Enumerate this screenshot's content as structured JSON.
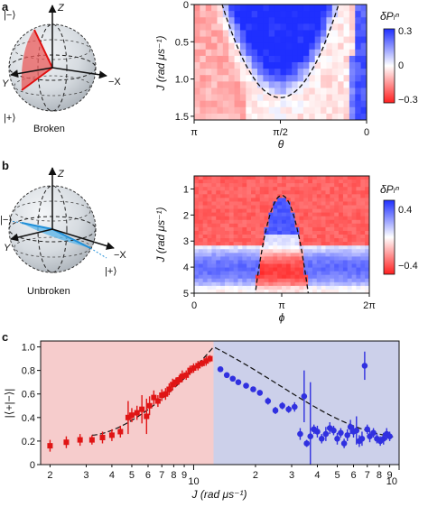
{
  "panels": {
    "a": {
      "letter": "a",
      "ylabel": "J (rad μs⁻¹)",
      "xlabel": "θ",
      "sphere": {
        "z_label": "Z",
        "minus_x_label": "−X",
        "y_label": "Y",
        "ket_minus": "|−⟩",
        "ket_plus": "|+⟩",
        "caption": "Broken"
      },
      "colorbar": {
        "label": "δPₗⁿ",
        "max_label": "0.3",
        "mid_label": "0",
        "min_label": "−0.3"
      }
    },
    "b": {
      "letter": "b",
      "ylabel": "J (rad μs⁻¹)",
      "xlabel": "ϕ",
      "sphere": {
        "z_label": "Z",
        "minus_x_label": "−X",
        "y_label": "Y",
        "ket_minus": "|−⟩",
        "ket_plus": "|+⟩",
        "caption": "Unbroken"
      },
      "colorbar": {
        "label": "δPₗⁿ",
        "max_label": "0.4",
        "min_label": "−0.4"
      }
    },
    "c": {
      "letter": "c",
      "ylabel": "|⟨+|−⟩|",
      "xlabel": "J (rad μs⁻¹)"
    }
  },
  "chart_data": [
    {
      "panel": "a",
      "type": "heatmap",
      "xlabel": "θ",
      "ylabel": "J (rad μs⁻¹)",
      "x_range": [
        3.1416,
        0
      ],
      "y_range": [
        0,
        1.55
      ],
      "x_ticks": [
        3.1416,
        1.5708,
        0
      ],
      "x_tick_labels": [
        "π",
        "π/2",
        "0"
      ],
      "y_ticks": [
        0,
        0.5,
        1.0,
        1.5
      ],
      "y_tick_labels": [
        "0",
        "0.5",
        "1.0",
        "1.5"
      ],
      "boundary": {
        "description": "dashed parabola",
        "vertex": [
          1.5708,
          1.25
        ],
        "passes_through": [
          [
            2.6,
            0
          ],
          [
            0.5,
            0
          ]
        ]
      },
      "color_range": [
        -0.3,
        0.3
      ],
      "colors": {
        "positive": "#1f2fff",
        "negative": "#ff1f1f"
      }
    },
    {
      "panel": "b",
      "type": "heatmap",
      "xlabel": "ϕ",
      "ylabel": "J (rad μs⁻¹)",
      "x_range": [
        0,
        6.2832
      ],
      "y_range": [
        0.5,
        5
      ],
      "x_ticks": [
        0,
        3.1416,
        6.2832
      ],
      "x_tick_labels": [
        "0",
        "π",
        "2π"
      ],
      "y_ticks": [
        1,
        2,
        3,
        4,
        5
      ],
      "y_tick_labels": [
        "1",
        "2",
        "3",
        "4",
        "5"
      ],
      "boundary": {
        "description": "dashed inverted parabola",
        "vertex": [
          3.1416,
          1.25
        ],
        "base": [
          [
            2.2,
            5
          ],
          [
            4.1,
            5
          ]
        ]
      },
      "color_range": [
        -0.4,
        0.4
      ]
    },
    {
      "panel": "c",
      "type": "scatter",
      "xlabel": "J (rad μs⁻¹)",
      "ylabel": "|⟨+|−⟩|",
      "x_scale": "log",
      "x_range": [
        1.8,
        100
      ],
      "ylim": [
        0,
        1.05
      ],
      "y_ticks": [
        0,
        0.2,
        0.4,
        0.6,
        0.8,
        1.0
      ],
      "y_tick_labels": [
        "0",
        "0.2",
        "0.4",
        "0.6",
        "0.8",
        "1.0"
      ],
      "x_tick_labels_major": [
        "10",
        "10"
      ],
      "x_tick_labels_minor": [
        "2",
        "3",
        "4",
        "5",
        "6",
        "7",
        "8",
        "9",
        "2",
        "3",
        "4",
        "5",
        "6",
        "7",
        "8",
        "9"
      ],
      "threshold_x": 12.5,
      "series": [
        {
          "marker": "square",
          "color": "#e01515",
          "x": [
            2.0,
            2.4,
            2.8,
            3.2,
            3.6,
            4.0,
            4.4,
            4.8,
            5.0,
            5.3,
            5.6,
            5.9,
            6.1,
            6.4,
            6.7,
            7.0,
            7.3,
            7.6,
            7.9,
            8.2,
            8.5,
            8.8,
            9.2,
            9.6,
            10.0,
            10.5,
            11.0,
            11.5,
            12.0
          ],
          "y": [
            0.16,
            0.19,
            0.21,
            0.21,
            0.23,
            0.25,
            0.28,
            0.4,
            0.42,
            0.44,
            0.47,
            0.41,
            0.5,
            0.57,
            0.54,
            0.59,
            0.6,
            0.64,
            0.68,
            0.7,
            0.72,
            0.75,
            0.76,
            0.8,
            0.82,
            0.84,
            0.86,
            0.88,
            0.9
          ],
          "err": [
            0.05,
            0.05,
            0.05,
            0.04,
            0.05,
            0.05,
            0.05,
            0.14,
            0.06,
            0.06,
            0.12,
            0.15,
            0.08,
            0.06,
            0.05,
            0.05,
            0.05,
            0.05,
            0.05,
            0.04,
            0.04,
            0.05,
            0.04,
            0.04,
            0.04,
            0.04,
            0.03,
            0.04,
            0.03
          ]
        },
        {
          "marker": "circle",
          "color": "#3030e0",
          "x": [
            13.5,
            14.5,
            15.5,
            16.5,
            18,
            19.5,
            21,
            23,
            25,
            27,
            29,
            31,
            33,
            34.5,
            35.5,
            37,
            38.5,
            40,
            42,
            44,
            46,
            48,
            50,
            52,
            54,
            56,
            58,
            60,
            62,
            64,
            66,
            68,
            70,
            72,
            75,
            78,
            81,
            84,
            87,
            90
          ],
          "y": [
            0.81,
            0.76,
            0.73,
            0.7,
            0.67,
            0.64,
            0.61,
            0.54,
            0.46,
            0.5,
            0.47,
            0.49,
            0.26,
            0.58,
            0.18,
            0.24,
            0.3,
            0.28,
            0.22,
            0.26,
            0.31,
            0.29,
            0.22,
            0.27,
            0.18,
            0.25,
            0.32,
            0.28,
            0.29,
            0.2,
            0.22,
            0.84,
            0.3,
            0.24,
            0.27,
            0.22,
            0.2,
            0.22,
            0.26,
            0.24
          ],
          "err": [
            0.02,
            0.02,
            0.02,
            0.02,
            0.02,
            0.02,
            0.02,
            0.03,
            0.03,
            0.03,
            0.03,
            0.04,
            0.05,
            0.22,
            0.03,
            0.46,
            0.04,
            0.05,
            0.04,
            0.06,
            0.05,
            0.04,
            0.05,
            0.04,
            0.04,
            0.05,
            0.06,
            0.05,
            0.12,
            0.05,
            0.06,
            0.12,
            0.04,
            0.05,
            0.04,
            0.04,
            0.04,
            0.05,
            0.05,
            0.04
          ]
        }
      ],
      "theory": {
        "description": "dashed curve: slow rise to 1 at threshold then decay",
        "peak_x": 12.5,
        "peak_y": 1.0,
        "right_end_y": 0.2
      }
    }
  ]
}
